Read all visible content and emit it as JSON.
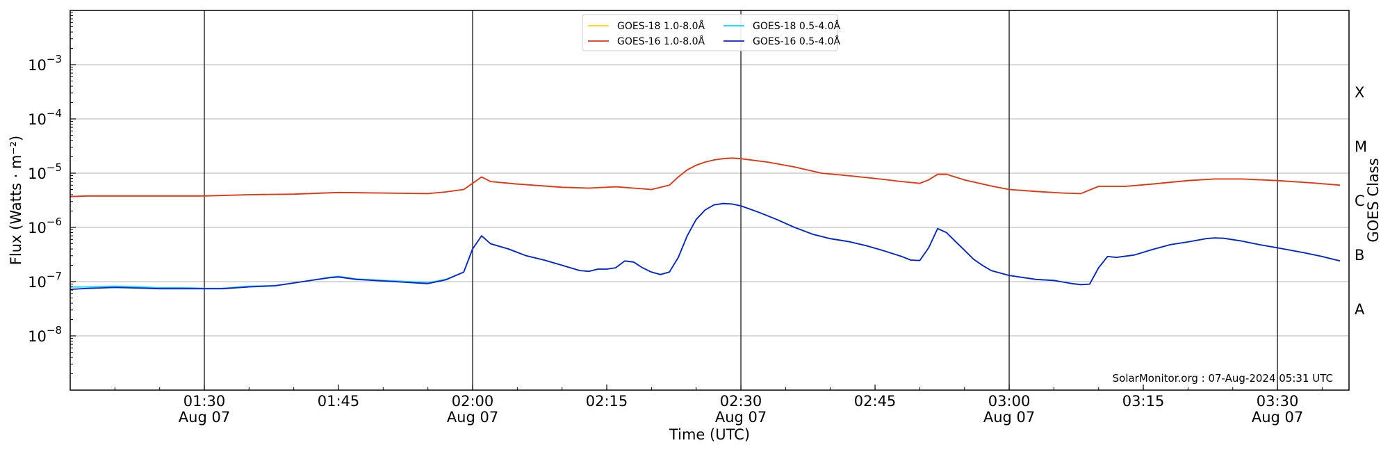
{
  "chart_data": {
    "type": "line",
    "xlabel": "Time (UTC)",
    "ylabel": "Flux (Watts · m⁻²)",
    "y2label": "GOES Class",
    "yscale": "log",
    "ylim": [
      1e-09,
      0.01
    ],
    "xlim": [
      "01:15",
      "03:38"
    ],
    "grid": "horizontal",
    "legend_placement": "top-center",
    "annotation": "SolarMonitor.org : 07-Aug-2024 05:31 UTC",
    "x_ticks": [
      {
        "t": "01:30",
        "line1": "01:30",
        "line2": "Aug 07",
        "vline": true
      },
      {
        "t": "01:45",
        "line1": "01:45",
        "line2": "",
        "vline": false
      },
      {
        "t": "02:00",
        "line1": "02:00",
        "line2": "Aug 07",
        "vline": true
      },
      {
        "t": "02:15",
        "line1": "02:15",
        "line2": "",
        "vline": false
      },
      {
        "t": "02:30",
        "line1": "02:30",
        "line2": "Aug 07",
        "vline": true
      },
      {
        "t": "02:45",
        "line1": "02:45",
        "line2": "",
        "vline": false
      },
      {
        "t": "03:00",
        "line1": "03:00",
        "line2": "Aug 07",
        "vline": true
      },
      {
        "t": "03:15",
        "line1": "03:15",
        "line2": "",
        "vline": false
      },
      {
        "t": "03:30",
        "line1": "03:30",
        "line2": "Aug 07",
        "vline": true
      }
    ],
    "y_ticks": [
      {
        "exp": -8,
        "label_base": "10",
        "label_exp": "−8"
      },
      {
        "exp": -7,
        "label_base": "10",
        "label_exp": "−7"
      },
      {
        "exp": -6,
        "label_base": "10",
        "label_exp": "−6"
      },
      {
        "exp": -5,
        "label_base": "10",
        "label_exp": "−5"
      },
      {
        "exp": -4,
        "label_base": "10",
        "label_exp": "−4"
      },
      {
        "exp": -3,
        "label_base": "10",
        "label_exp": "−3"
      }
    ],
    "goes_classes": [
      {
        "label": "A",
        "exp": -7.5
      },
      {
        "label": "B",
        "exp": -6.5
      },
      {
        "label": "C",
        "exp": -5.5
      },
      {
        "label": "M",
        "exp": -4.5
      },
      {
        "label": "X",
        "exp": -3.5
      }
    ],
    "series": [
      {
        "name": "GOES-18 1.0-8.0Å",
        "color": "#ffd700",
        "x": [
          "01:15",
          "01:17",
          "01:20",
          "01:25",
          "01:30",
          "01:35",
          "01:40",
          "01:45",
          "01:50",
          "01:55",
          "01:57",
          "01:59",
          "02:00",
          "02:01",
          "02:02",
          "02:05",
          "02:10",
          "02:13",
          "02:16",
          "02:18",
          "02:20",
          "02:22",
          "02:23",
          "02:24",
          "02:25",
          "02:26",
          "02:27",
          "02:28",
          "02:29",
          "02:30",
          "02:33",
          "02:36",
          "02:39",
          "02:42",
          "02:45",
          "02:48",
          "02:50",
          "02:51",
          "02:52",
          "02:53",
          "02:55",
          "02:58",
          "03:00",
          "03:03",
          "03:06",
          "03:08",
          "03:10",
          "03:13",
          "03:16",
          "03:20",
          "03:23",
          "03:26",
          "03:30",
          "03:34",
          "03:37"
        ],
        "values": [
          3.7e-06,
          3.8e-06,
          3.8e-06,
          3.8e-06,
          3.8e-06,
          4e-06,
          4.1e-06,
          4.4e-06,
          4.3e-06,
          4.2e-06,
          4.5e-06,
          5e-06,
          6.5e-06,
          8.5e-06,
          7e-06,
          6.3e-06,
          5.5e-06,
          5.3e-06,
          5.6e-06,
          5.3e-06,
          5e-06,
          6e-06,
          8.5e-06,
          1.15e-05,
          1.4e-05,
          1.6e-05,
          1.75e-05,
          1.85e-05,
          1.9e-05,
          1.85e-05,
          1.6e-05,
          1.3e-05,
          1e-05,
          9e-06,
          8e-06,
          7e-06,
          6.5e-06,
          7.5e-06,
          9.5e-06,
          9.5e-06,
          7.5e-06,
          5.8e-06,
          5e-06,
          4.6e-06,
          4.3e-06,
          4.2e-06,
          5.7e-06,
          5.7e-06,
          6.3e-06,
          7.3e-06,
          7.8e-06,
          7.8e-06,
          7.3e-06,
          6.6e-06,
          6e-06
        ]
      },
      {
        "name": "GOES-16 1.0-8.0Å",
        "color": "#e8301a",
        "x": [
          "01:15",
          "01:17",
          "01:20",
          "01:25",
          "01:30",
          "01:35",
          "01:40",
          "01:45",
          "01:50",
          "01:55",
          "01:57",
          "01:59",
          "02:00",
          "02:01",
          "02:02",
          "02:05",
          "02:10",
          "02:13",
          "02:16",
          "02:18",
          "02:20",
          "02:22",
          "02:23",
          "02:24",
          "02:25",
          "02:26",
          "02:27",
          "02:28",
          "02:29",
          "02:30",
          "02:33",
          "02:36",
          "02:39",
          "02:42",
          "02:45",
          "02:48",
          "02:50",
          "02:51",
          "02:52",
          "02:53",
          "02:55",
          "02:58",
          "03:00",
          "03:03",
          "03:06",
          "03:08",
          "03:10",
          "03:13",
          "03:16",
          "03:20",
          "03:23",
          "03:26",
          "03:30",
          "03:34",
          "03:37"
        ],
        "values": [
          3.7e-06,
          3.8e-06,
          3.8e-06,
          3.8e-06,
          3.8e-06,
          4e-06,
          4.1e-06,
          4.4e-06,
          4.3e-06,
          4.2e-06,
          4.5e-06,
          5e-06,
          6.5e-06,
          8.5e-06,
          7e-06,
          6.3e-06,
          5.5e-06,
          5.3e-06,
          5.6e-06,
          5.3e-06,
          5e-06,
          6e-06,
          8.5e-06,
          1.15e-05,
          1.4e-05,
          1.6e-05,
          1.75e-05,
          1.85e-05,
          1.9e-05,
          1.85e-05,
          1.6e-05,
          1.3e-05,
          1e-05,
          9e-06,
          8e-06,
          7e-06,
          6.5e-06,
          7.5e-06,
          9.5e-06,
          9.5e-06,
          7.5e-06,
          5.8e-06,
          5e-06,
          4.6e-06,
          4.3e-06,
          4.2e-06,
          5.7e-06,
          5.7e-06,
          6.3e-06,
          7.3e-06,
          7.8e-06,
          7.8e-06,
          7.3e-06,
          6.6e-06,
          6e-06
        ]
      },
      {
        "name": "GOES-18 0.5-4.0Å",
        "color": "#00d8ff",
        "x": [
          "01:15",
          "01:17",
          "01:20",
          "01:23",
          "01:25",
          "01:28",
          "01:30",
          "01:32",
          "01:35",
          "01:38",
          "01:41",
          "01:44",
          "01:45",
          "01:47",
          "01:50",
          "01:53",
          "01:55",
          "01:57",
          "01:59",
          "02:00",
          "02:01",
          "02:02",
          "02:04",
          "02:06",
          "02:08",
          "02:10",
          "02:12",
          "02:13",
          "02:14",
          "02:15",
          "02:16",
          "02:17",
          "02:18",
          "02:19",
          "02:20",
          "02:21",
          "02:22",
          "02:23",
          "02:24",
          "02:25",
          "02:26",
          "02:27",
          "02:28",
          "02:29",
          "02:30",
          "02:32",
          "02:34",
          "02:36",
          "02:38",
          "02:40",
          "02:42",
          "02:44",
          "02:46",
          "02:48",
          "02:49",
          "02:50",
          "02:51",
          "02:52",
          "02:53",
          "02:54",
          "02:55",
          "02:56",
          "02:57",
          "02:58",
          "03:00",
          "03:03",
          "03:05",
          "03:07",
          "03:08",
          "03:09",
          "03:10",
          "03:11",
          "03:12",
          "03:14",
          "03:16",
          "03:18",
          "03:20",
          "03:22",
          "03:23",
          "03:24",
          "03:26",
          "03:28",
          "03:30",
          "03:33",
          "03:35",
          "03:37"
        ],
        "values": [
          8e-08,
          8e-08,
          8.2e-08,
          8e-08,
          7.7e-08,
          7.7e-08,
          7.5e-08,
          7.5e-08,
          8.2e-08,
          8.5e-08,
          1e-07,
          1.2e-07,
          1.25e-07,
          1.12e-07,
          1.05e-07,
          1e-07,
          9.5e-08,
          1.1e-07,
          1.5e-07,
          4e-07,
          7e-07,
          5e-07,
          4e-07,
          3e-07,
          2.5e-07,
          2e-07,
          1.6e-07,
          1.55e-07,
          1.7e-07,
          1.7e-07,
          1.8e-07,
          2.4e-07,
          2.3e-07,
          1.8e-07,
          1.5e-07,
          1.35e-07,
          1.5e-07,
          2.8e-07,
          7e-07,
          1.4e-06,
          2.1e-06,
          2.6e-06,
          2.75e-06,
          2.7e-06,
          2.5e-06,
          1.9e-06,
          1.4e-06,
          1e-06,
          7.5e-07,
          6.2e-07,
          5.5e-07,
          4.6e-07,
          3.7e-07,
          2.9e-07,
          2.5e-07,
          2.45e-07,
          4.2e-07,
          9.5e-07,
          8e-07,
          5.5e-07,
          3.8e-07,
          2.6e-07,
          2e-07,
          1.6e-07,
          1.3e-07,
          1.1e-07,
          1.05e-07,
          9.2e-08,
          8.8e-08,
          9e-08,
          1.8e-07,
          2.9e-07,
          2.8e-07,
          3.1e-07,
          3.9e-07,
          4.8e-07,
          5.4e-07,
          6.2e-07,
          6.4e-07,
          6.3e-07,
          5.6e-07,
          4.8e-07,
          4.2e-07,
          3.4e-07,
          2.9e-07,
          2.4e-07
        ]
      },
      {
        "name": "GOES-16 0.5-4.0Å",
        "color": "#0a1fd6",
        "x": [
          "01:15",
          "01:17",
          "01:20",
          "01:23",
          "01:25",
          "01:28",
          "01:30",
          "01:32",
          "01:35",
          "01:38",
          "01:41",
          "01:44",
          "01:45",
          "01:47",
          "01:50",
          "01:53",
          "01:55",
          "01:57",
          "01:59",
          "02:00",
          "02:01",
          "02:02",
          "02:04",
          "02:06",
          "02:08",
          "02:10",
          "02:12",
          "02:13",
          "02:14",
          "02:15",
          "02:16",
          "02:17",
          "02:18",
          "02:19",
          "02:20",
          "02:21",
          "02:22",
          "02:23",
          "02:24",
          "02:25",
          "02:26",
          "02:27",
          "02:28",
          "02:29",
          "02:30",
          "02:32",
          "02:34",
          "02:36",
          "02:38",
          "02:40",
          "02:42",
          "02:44",
          "02:46",
          "02:48",
          "02:49",
          "02:50",
          "02:51",
          "02:52",
          "02:53",
          "02:54",
          "02:55",
          "02:56",
          "02:57",
          "02:58",
          "03:00",
          "03:03",
          "03:05",
          "03:07",
          "03:08",
          "03:09",
          "03:10",
          "03:11",
          "03:12",
          "03:14",
          "03:16",
          "03:18",
          "03:20",
          "03:22",
          "03:23",
          "03:24",
          "03:26",
          "03:28",
          "03:30",
          "03:33",
          "03:35",
          "03:37"
        ],
        "values": [
          7.2e-08,
          7.5e-08,
          7.8e-08,
          7.6e-08,
          7.4e-08,
          7.4e-08,
          7.4e-08,
          7.4e-08,
          8e-08,
          8.4e-08,
          1e-07,
          1.18e-07,
          1.22e-07,
          1.1e-07,
          1.03e-07,
          9.6e-08,
          9.2e-08,
          1.08e-07,
          1.5e-07,
          4e-07,
          7e-07,
          5e-07,
          4e-07,
          3e-07,
          2.5e-07,
          2e-07,
          1.6e-07,
          1.55e-07,
          1.7e-07,
          1.7e-07,
          1.8e-07,
          2.4e-07,
          2.3e-07,
          1.8e-07,
          1.5e-07,
          1.35e-07,
          1.5e-07,
          2.8e-07,
          7e-07,
          1.4e-06,
          2.1e-06,
          2.6e-06,
          2.75e-06,
          2.7e-06,
          2.5e-06,
          1.9e-06,
          1.4e-06,
          1e-06,
          7.5e-07,
          6.2e-07,
          5.5e-07,
          4.6e-07,
          3.7e-07,
          2.9e-07,
          2.5e-07,
          2.45e-07,
          4.2e-07,
          9.5e-07,
          8e-07,
          5.5e-07,
          3.8e-07,
          2.6e-07,
          2e-07,
          1.6e-07,
          1.3e-07,
          1.1e-07,
          1.05e-07,
          9.2e-08,
          8.8e-08,
          9e-08,
          1.8e-07,
          2.9e-07,
          2.8e-07,
          3.1e-07,
          3.9e-07,
          4.8e-07,
          5.4e-07,
          6.2e-07,
          6.4e-07,
          6.3e-07,
          5.6e-07,
          4.8e-07,
          4.2e-07,
          3.4e-07,
          2.9e-07,
          2.4e-07
        ]
      }
    ]
  }
}
